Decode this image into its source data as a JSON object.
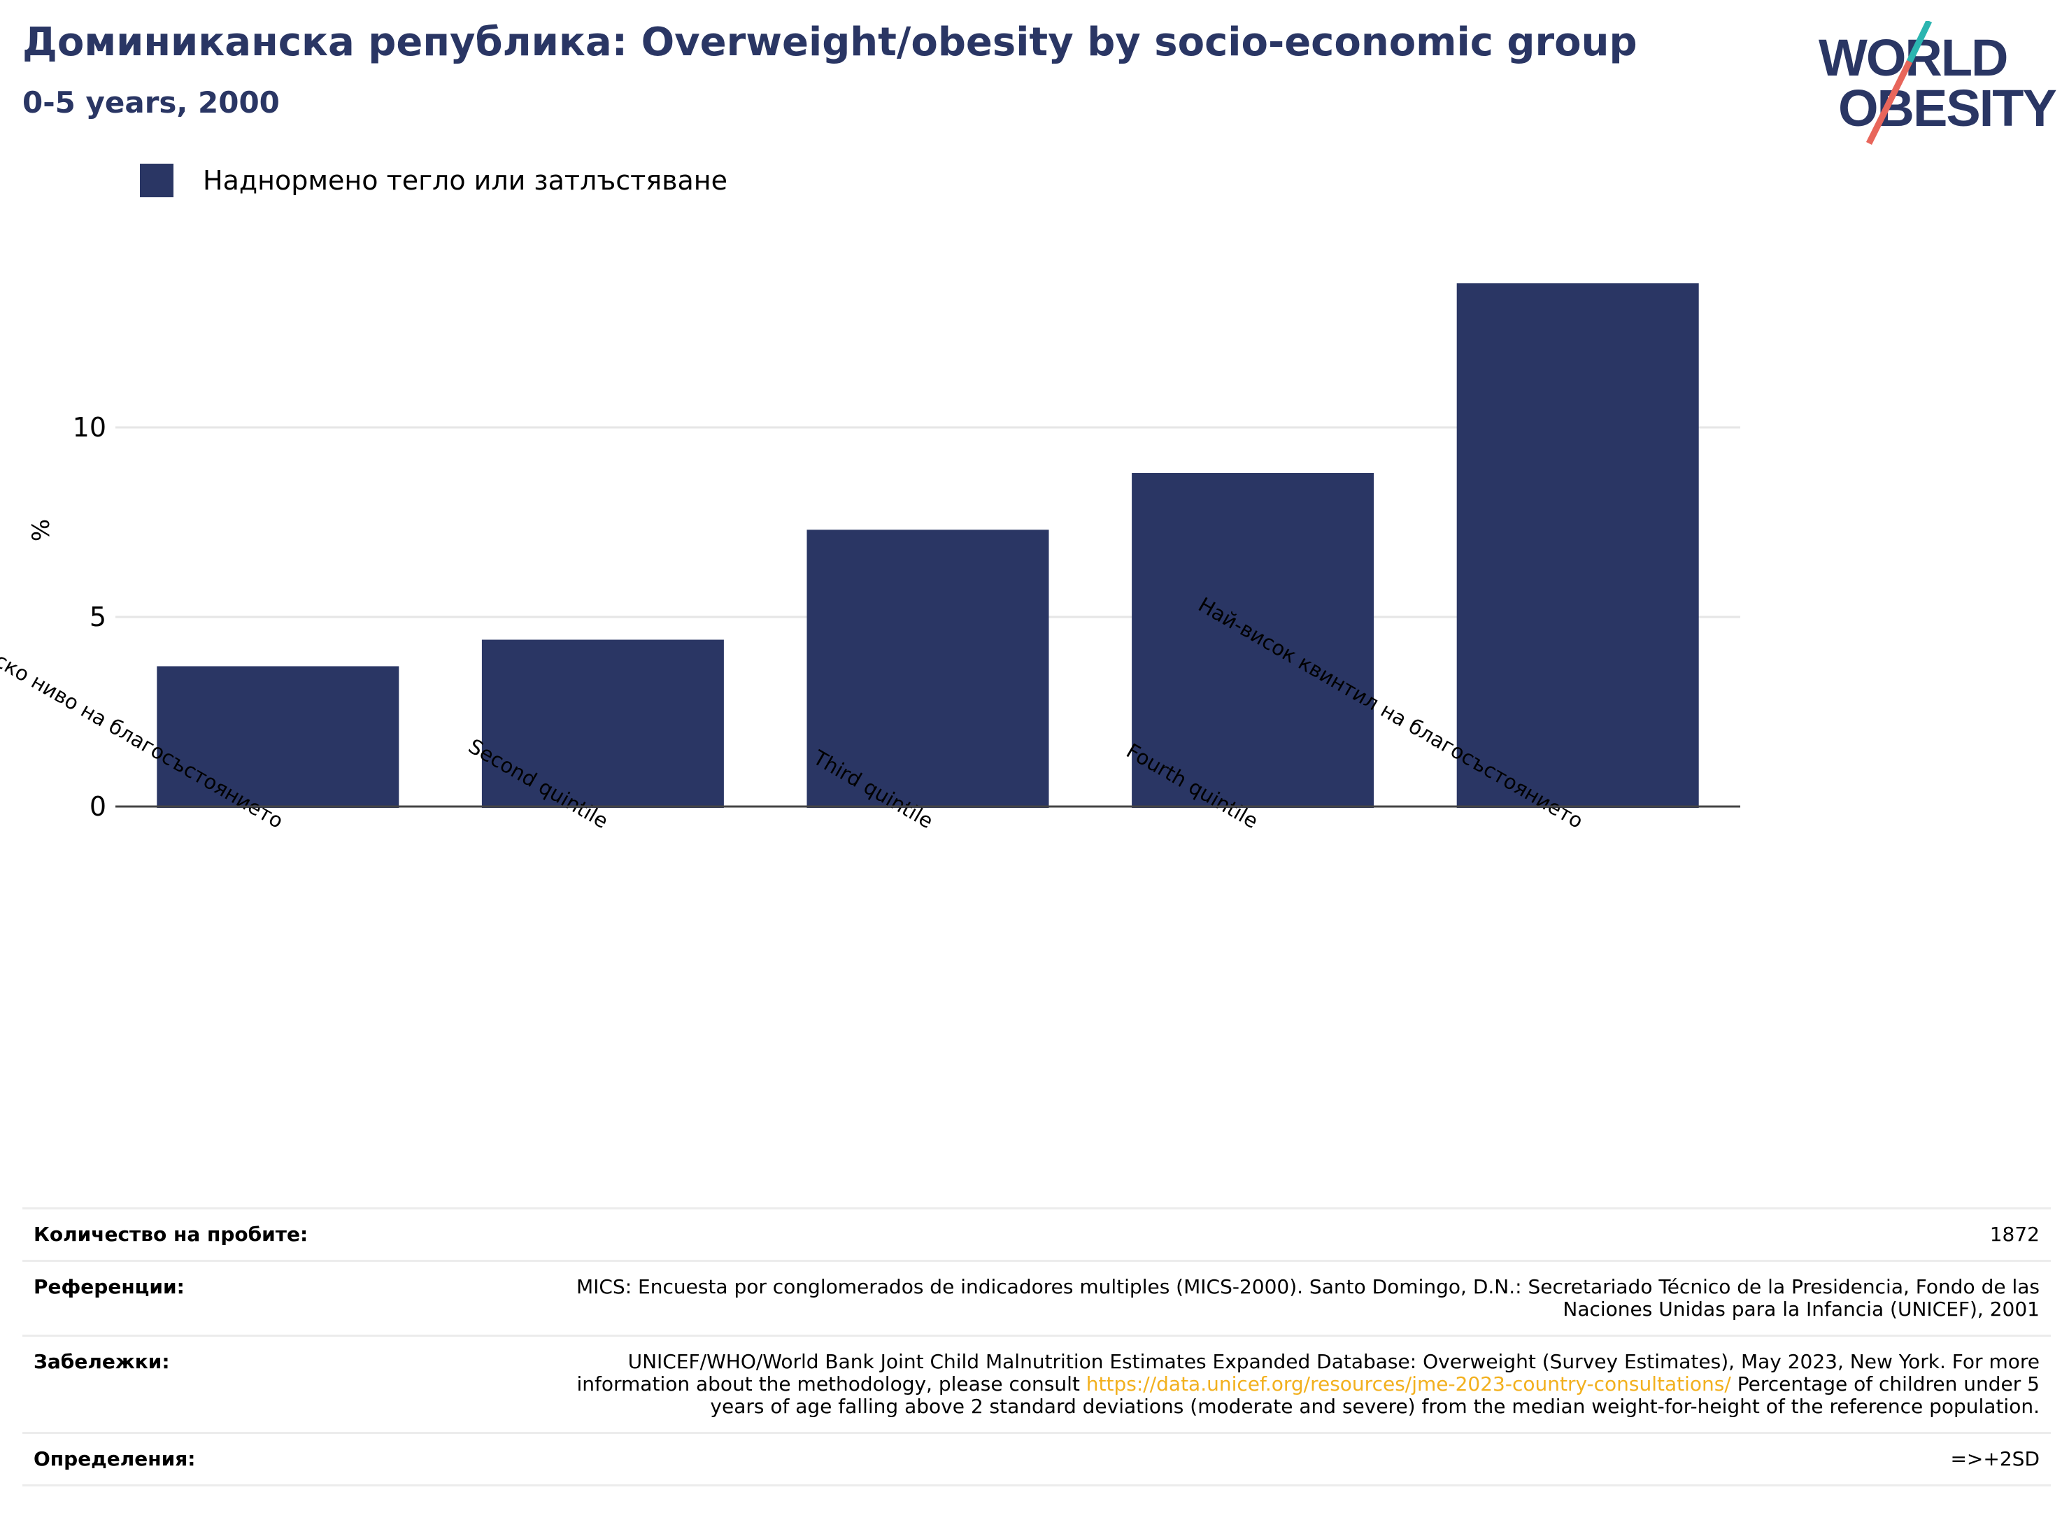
{
  "header": {
    "title": "Доминиканска република: Overweight/obesity by socio-economic group",
    "subtitle": "0-5 years, 2000"
  },
  "logo": {
    "line1": "WORLD",
    "line2": "OBESITY",
    "icon": "world-obesity-logo"
  },
  "legend": {
    "label": "Наднормено тегло или затлъстяване",
    "color": "#2a3664"
  },
  "chart_data": {
    "type": "bar",
    "categories": [
      "Квинтил с най-ниско ниво на благосъстоянието",
      "Second quintile",
      "Third quintile",
      "Fourth quintile",
      "Най-висок квинтил на благосъстоянието"
    ],
    "series": [
      {
        "name": "Наднормено тегло или затлъстяване",
        "values": [
          3.7,
          4.4,
          7.3,
          8.8,
          13.8
        ]
      }
    ],
    "ylabel": "%",
    "ylim": [
      0,
      15
    ],
    "yticks": [
      0,
      5,
      10
    ],
    "grid": true,
    "legend_position": "top-left",
    "bar_color": "#2a3664"
  },
  "footer": {
    "rows": [
      {
        "key": "Количество на пробите:",
        "value": "1872"
      },
      {
        "key": "Референции:",
        "value": "MICS: Encuesta por conglomerados de indicadores multiples (MICS-2000). Santo Domingo, D.N.: Secretariado Técnico de la Presidencia, Fondo de las Naciones Unidas para la Infancia (UNICEF), 2001"
      },
      {
        "key": "Забележки:",
        "value_pre": "UNICEF/WHO/World Bank Joint Child Malnutrition Estimates Expanded Database: Overweight (Survey Estimates), May 2023, New York. For more information about the methodology, please consult ",
        "link": "https://data.unicef.org/resources/jme-2023-country-consultations/",
        "value_post": " Percentage of children under 5 years of age falling above 2 standard deviations (moderate and severe) from the median weight-for-height of the reference population."
      },
      {
        "key": "Определения:",
        "value": "=>+2SD"
      }
    ]
  }
}
